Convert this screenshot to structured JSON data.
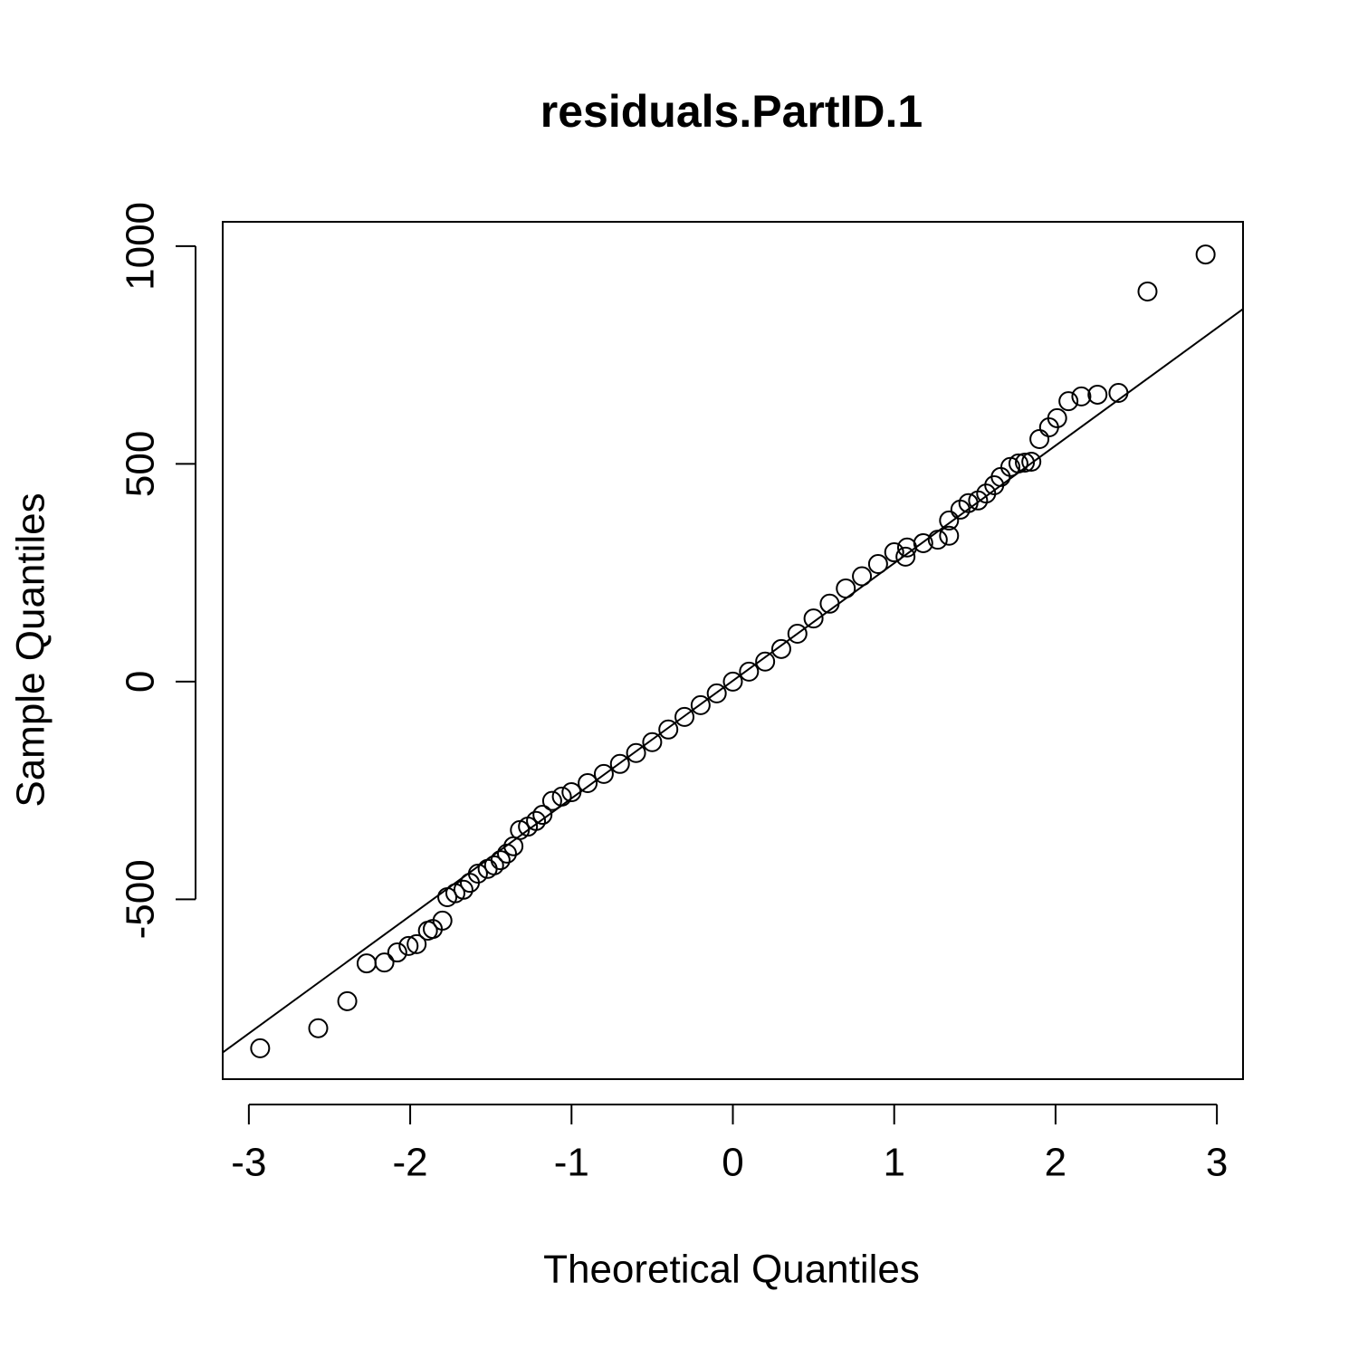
{
  "chart_data": {
    "type": "scatter",
    "title": "residuals.PartID.1",
    "xlabel": "Theoretical Quantiles",
    "ylabel": "Sample Quantiles",
    "x": [
      -2.93,
      -2.57,
      -2.39,
      -2.27,
      -2.16,
      -2.08,
      -2.01,
      -1.96,
      -1.89,
      -1.86,
      -1.8,
      -1.77,
      -1.72,
      -1.67,
      -1.63,
      -1.58,
      -1.52,
      -1.48,
      -1.44,
      -1.4,
      -1.36,
      -1.32,
      -1.27,
      -1.22,
      -1.18,
      -1.12,
      -1.06,
      -1.0,
      -0.9,
      -0.8,
      -0.7,
      -0.6,
      -0.5,
      -0.4,
      -0.3,
      -0.2,
      -0.1,
      0,
      0.1,
      0.2,
      0.3,
      0.4,
      0.5,
      0.6,
      0.7,
      0.8,
      0.9,
      1.0,
      1.07,
      1.08,
      1.18,
      1.27,
      1.34,
      1.34,
      1.41,
      1.46,
      1.52,
      1.57,
      1.62,
      1.66,
      1.72,
      1.77,
      1.81,
      1.85,
      1.9,
      1.96,
      2.01,
      2.08,
      2.16,
      2.26,
      2.39,
      2.57,
      2.93
    ],
    "y": [
      -842,
      -796,
      -734,
      -647,
      -645,
      -622,
      -607,
      -603,
      -572,
      -568,
      -549,
      -495,
      -486,
      -478,
      -462,
      -441,
      -430,
      -422,
      -410,
      -395,
      -378,
      -341,
      -333,
      -320,
      -306,
      -274,
      -264,
      -254,
      -233,
      -212,
      -189,
      -164,
      -139,
      -110,
      -81,
      -54,
      -27,
      0,
      23,
      46,
      75,
      110,
      145,
      179,
      214,
      242,
      270,
      297,
      287,
      308,
      318,
      326,
      335,
      370,
      395,
      410,
      416,
      432,
      451,
      470,
      493,
      501,
      503,
      505,
      557,
      584,
      605,
      644,
      655,
      659,
      663,
      896,
      981
    ],
    "color": "#000000",
    "reference_line": {
      "intercept": 2,
      "slope": 270
    },
    "xlim": [
      -3.162,
      3.162
    ],
    "ylim": [
      -913,
      1056
    ],
    "xticks": [
      -3,
      -2,
      -1,
      0,
      1,
      2,
      3
    ],
    "yticks": [
      -500,
      0,
      500,
      1000
    ]
  }
}
